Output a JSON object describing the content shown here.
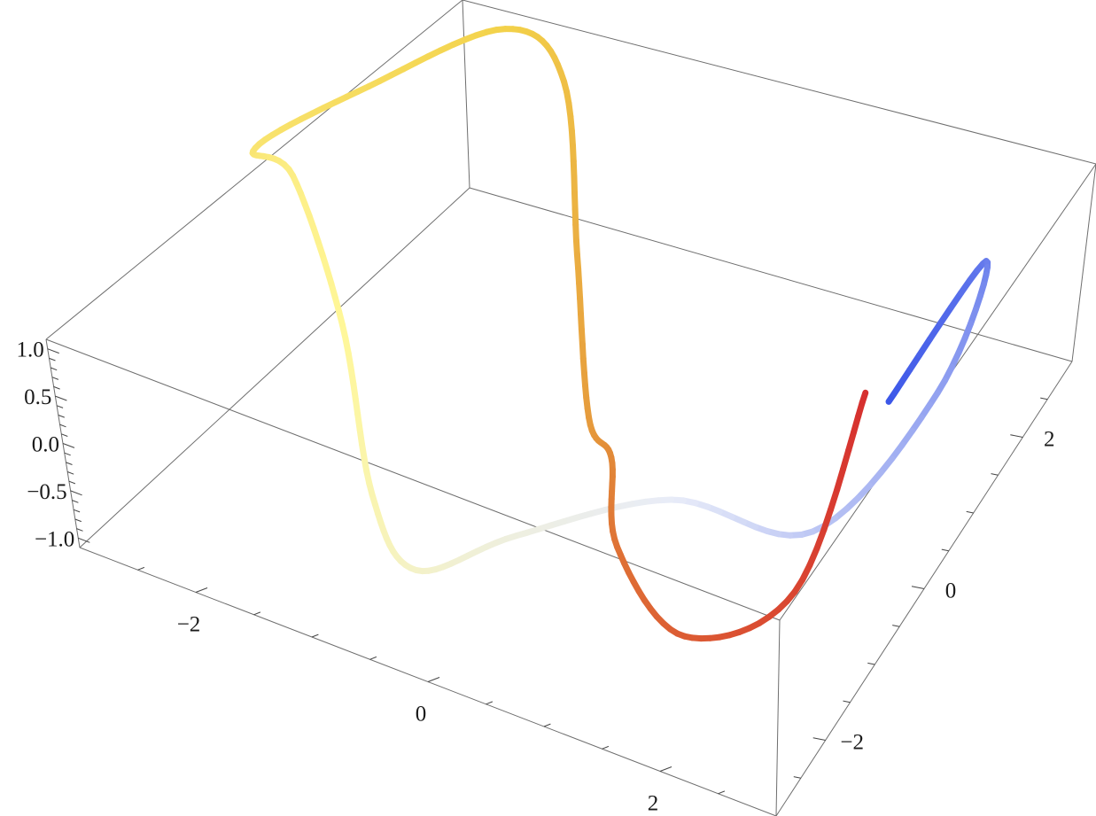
{
  "chart_data": {
    "type": "line3d",
    "title": "",
    "xlabel": "",
    "ylabel": "",
    "zlabel": "",
    "x_range": [
      -3,
      3
    ],
    "y_range": [
      -3,
      3
    ],
    "z_range": [
      -1.1,
      1.1
    ],
    "box": true,
    "grid": false,
    "legend": "none",
    "x_ticks": {
      "labels": [
        "−2",
        "0",
        "2"
      ],
      "values": [
        -2,
        0,
        2
      ]
    },
    "y_ticks": {
      "labels": [
        "−2",
        "0",
        "2"
      ],
      "values": [
        -2,
        0,
        2
      ]
    },
    "z_ticks": {
      "labels": [
        "−1.0",
        "−0.5",
        "0.0",
        "0.5",
        "1.0"
      ],
      "values": [
        -1.0,
        -0.5,
        0.0,
        0.5,
        1.0
      ]
    },
    "color_gradient": [
      "#3a55e8",
      "#e8ecf8",
      "#fff799",
      "#f3d24a",
      "#e28a38",
      "#d62f2f"
    ],
    "series": [
      {
        "t": [
          0,
          0.05,
          0.1,
          0.15,
          0.2,
          0.25,
          0.3,
          0.35,
          0.4,
          0.45,
          0.5,
          0.55,
          0.6,
          0.65,
          0.7,
          0.75,
          0.8,
          0.85,
          0.9,
          0.95,
          1.0
        ],
        "x": [
          2.5,
          2.7,
          2.85,
          2.4,
          1.6,
          0.8,
          0.0,
          -0.8,
          -1.5,
          -2.3,
          -3.0,
          -2.6,
          -1.6,
          -0.8,
          -0.2,
          0.4,
          1.0,
          1.6,
          2.2,
          2.6,
          2.3
        ],
        "y": [
          0.8,
          2.4,
          1.0,
          -0.6,
          -1.4,
          -2.6,
          -2.9,
          -2.0,
          -0.8,
          0.2,
          0.9,
          2.2,
          2.8,
          2.2,
          0.9,
          -0.4,
          -1.2,
          -2.4,
          -2.6,
          -1.4,
          0.8
        ],
        "z": [
          0.0,
          0.3,
          0.1,
          -0.3,
          0.3,
          0.5,
          0.0,
          -0.3,
          0.2,
          0.6,
          0.0,
          -0.2,
          0.4,
          0.7,
          0.2,
          -0.2,
          0.3,
          0.6,
          0.1,
          -0.2,
          0.0
        ]
      }
    ]
  }
}
